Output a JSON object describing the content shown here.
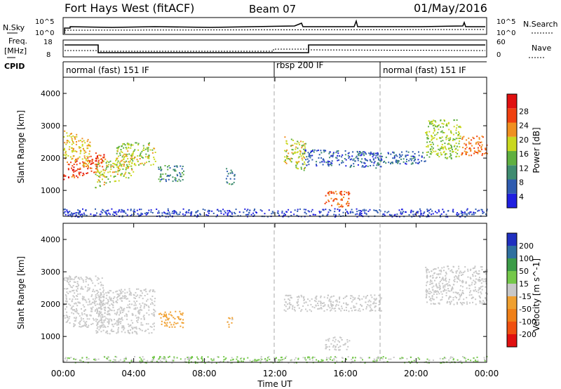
{
  "header": {
    "station": "Fort Hays West (fitACF)",
    "beam": "Beam 07",
    "date": "01/May/2016"
  },
  "noise_panel": {
    "left_label": "N.Sky",
    "right_label": "N.Search",
    "left_ticks": [
      "10^5",
      "10^0"
    ],
    "right_ticks": [
      "10^5",
      "10^0"
    ]
  },
  "freq_panel": {
    "left_label_1": "Freq.",
    "left_label_2": "[MHz]",
    "left_ticks": [
      "18",
      "8"
    ],
    "right_label": "Nave",
    "right_ticks": [
      "60",
      "0"
    ]
  },
  "cpid": {
    "label": "CPID",
    "modes": [
      {
        "name": "normal (fast) 151 IF",
        "start": 0
      },
      {
        "name": "rbsp 200 IF",
        "start": 12
      },
      {
        "name": "normal (fast) 151 IF",
        "start": 18
      }
    ]
  },
  "colors": {
    "power": [
      "#1f1fe0",
      "#2f5cb0",
      "#3f8c70",
      "#5fb040",
      "#c9d820",
      "#f09020",
      "#f04010",
      "#e01010"
    ],
    "velocity": [
      "#2030c0",
      "#2f70a0",
      "#3c9c48",
      "#74c84a",
      "#c8c8c8",
      "#f0a030",
      "#f08018",
      "#f05010",
      "#e01010"
    ]
  },
  "chart_data": [
    {
      "type": "heatmap",
      "quantity": "Power",
      "xlabel": "",
      "ylabel": "Slant Range [km]",
      "xlim": [
        0,
        24
      ],
      "ylim": [
        200,
        4500
      ],
      "yticks": [
        "1000",
        "2000",
        "3000",
        "4000"
      ],
      "colorbar_label": "Power [dB]",
      "colorbar_ticks": [
        "4",
        "8",
        "12",
        "16",
        "20",
        "24",
        "28"
      ],
      "colorbar_range": [
        0,
        32
      ],
      "features": [
        {
          "t0": 0.0,
          "t1": 2.3,
          "r0": 1300,
          "r1": 1900,
          "slope": 350,
          "level": 26
        },
        {
          "t0": 0.0,
          "t1": 1.5,
          "r0": 2000,
          "r1": 2900,
          "slope": -300,
          "level": 20
        },
        {
          "t0": 1.8,
          "t1": 4.0,
          "r0": 1100,
          "r1": 1900,
          "slope": 350,
          "level": 18
        },
        {
          "t0": 3.0,
          "t1": 5.2,
          "r0": 1800,
          "r1": 2500,
          "slope": 0,
          "level": 17
        },
        {
          "t0": 5.3,
          "t1": 6.8,
          "r0": 1300,
          "r1": 1800,
          "slope": 0,
          "level": 10
        },
        {
          "t0": 9.2,
          "t1": 9.7,
          "r0": 1200,
          "r1": 1700,
          "slope": 0,
          "level": 9
        },
        {
          "t0": 12.5,
          "t1": 13.8,
          "r0": 1800,
          "r1": 2700,
          "slope": -200,
          "level": 18
        },
        {
          "t0": 13.5,
          "t1": 18.0,
          "r0": 1800,
          "r1": 2300,
          "slope": -100,
          "level": 6
        },
        {
          "t0": 14.8,
          "t1": 16.2,
          "r0": 500,
          "r1": 1000,
          "slope": 0,
          "level": 24
        },
        {
          "t0": 17.5,
          "t1": 20.5,
          "r0": 1800,
          "r1": 2200,
          "slope": 50,
          "level": 7
        },
        {
          "t0": 20.5,
          "t1": 22.5,
          "r0": 2000,
          "r1": 3200,
          "slope": 0,
          "level": 16
        },
        {
          "t0": 22.5,
          "t1": 24.0,
          "r0": 2100,
          "r1": 2700,
          "slope": 0,
          "level": 24
        },
        {
          "t0": 0.0,
          "t1": 24.0,
          "r0": 200,
          "r1": 450,
          "slope": 0,
          "level": 4
        }
      ]
    },
    {
      "type": "heatmap",
      "quantity": "Velocity",
      "xlabel": "Time UT",
      "ylabel": "Slant Range [km]",
      "xlim": [
        0,
        24
      ],
      "ylim": [
        200,
        4500
      ],
      "xticks": [
        "00:00",
        "04:00",
        "08:00",
        "12:00",
        "16:00",
        "20:00",
        "00:00"
      ],
      "yticks": [
        "1000",
        "2000",
        "3000",
        "4000"
      ],
      "colorbar_label": "Velocity [m s^-1]",
      "colorbar_ticks": [
        "200",
        "100",
        "50",
        "15",
        "-15",
        "-50",
        "-100",
        "-200"
      ],
      "colorbar_range": [
        -250,
        250
      ],
      "features": [
        {
          "t0": 0.0,
          "t1": 2.3,
          "r0": 1300,
          "r1": 2900,
          "slope": 0,
          "level": 0
        },
        {
          "t0": 1.8,
          "t1": 5.2,
          "r0": 1100,
          "r1": 2500,
          "slope": 0,
          "level": 0
        },
        {
          "t0": 5.4,
          "t1": 6.8,
          "r0": 1300,
          "r1": 1800,
          "slope": 0,
          "level": -60
        },
        {
          "t0": 9.2,
          "t1": 9.6,
          "r0": 1300,
          "r1": 1600,
          "slope": 0,
          "level": -40
        },
        {
          "t0": 12.5,
          "t1": 18.0,
          "r0": 1800,
          "r1": 2300,
          "slope": 0,
          "level": 0
        },
        {
          "t0": 14.8,
          "t1": 16.2,
          "r0": 600,
          "r1": 1000,
          "slope": 0,
          "level": 0
        },
        {
          "t0": 20.5,
          "t1": 24.0,
          "r0": 2000,
          "r1": 3200,
          "slope": 0,
          "level": 0
        },
        {
          "t0": 0.0,
          "t1": 24.0,
          "r0": 200,
          "r1": 400,
          "slope": 0,
          "level": 30
        }
      ]
    }
  ]
}
